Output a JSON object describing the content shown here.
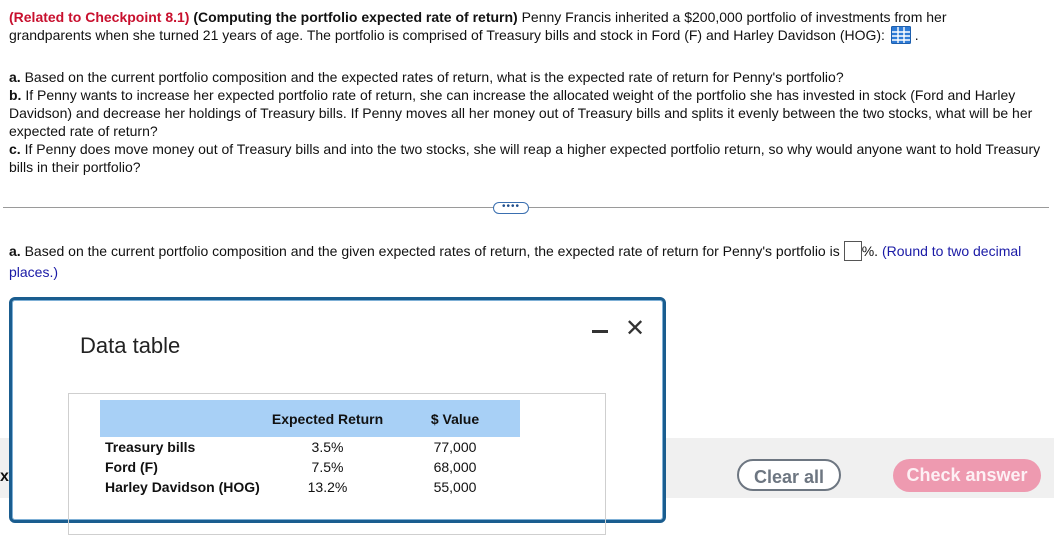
{
  "problem": {
    "tag": "(Related to Checkpoint 8.1)",
    "title": "(Computing the portfolio expected rate of return)",
    "intro": "Penny Francis inherited a $200,000 portfolio of investments from her grandparents when she turned 21 years of age. The portfolio is comprised of Treasury bills and stock in Ford (F) and Harley Davidson (HOG):",
    "intro_end": ".",
    "part_a_label": "a.",
    "part_a": "Based on the current portfolio composition and the expected rates of return, what is the expected rate of return for Penny's portfolio?",
    "part_b_label": "b.",
    "part_b": "If Penny wants to increase her expected portfolio rate of return, she can increase the allocated weight of the portfolio she has invested in stock (Ford and Harley Davidson) and decrease her holdings of Treasury bills. If Penny moves all her money out of Treasury bills and splits it evenly between the two stocks, what will be her expected rate of return?",
    "part_c_label": "c.",
    "part_c": "If Penny does move money out of Treasury bills and into the two stocks, she will reap a higher expected portfolio return, so why would anyone want to hold Treasury bills in their portfolio?"
  },
  "expand_dots": "••••",
  "answer": {
    "label": "a.",
    "text": "Based on the current portfolio composition and the given expected rates of return, the expected rate of return for Penny's portfolio is",
    "value": "",
    "unit": "%.",
    "hint": "(Round to two decimal places.)"
  },
  "dialog": {
    "title": "Data table",
    "columns": [
      "",
      "Expected Return",
      "$ Value"
    ],
    "rows": [
      {
        "name": "Treasury bills",
        "ret": "3.5%",
        "value": "77,000"
      },
      {
        "name": "Ford (F)",
        "ret": "7.5%",
        "value": "68,000"
      },
      {
        "name": "Harley Davidson (HOG)",
        "ret": "13.2%",
        "value": "55,000"
      }
    ]
  },
  "buttons": {
    "clear": "Clear all",
    "check": "Check answer"
  },
  "left_marker": "x",
  "colors": {
    "tag": "#c8102e",
    "table_header": "#a8d0f6",
    "dialog_border": "#1a5d8f",
    "check_button": "#ee9ab0",
    "hint": "#1a1aa6"
  }
}
